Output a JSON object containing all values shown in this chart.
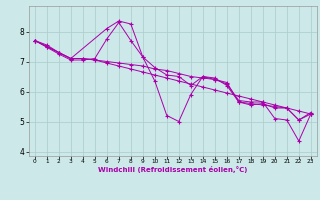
{
  "xlabel": "Windchill (Refroidissement éolien,°C)",
  "bg_color": "#cce8e8",
  "line_color": "#aa00aa",
  "grid_color": "#aacccc",
  "xlim": [
    -0.5,
    23.5
  ],
  "ylim": [
    3.85,
    8.85
  ],
  "yticks": [
    4,
    5,
    6,
    7,
    8
  ],
  "xticks": [
    0,
    1,
    2,
    3,
    4,
    5,
    6,
    7,
    8,
    9,
    10,
    11,
    12,
    13,
    14,
    15,
    16,
    17,
    18,
    19,
    20,
    21,
    22,
    23
  ],
  "series": [
    {
      "x": [
        0,
        1,
        2,
        3,
        4,
        5,
        6,
        7,
        8,
        9,
        10,
        11,
        12,
        13,
        14,
        15,
        16,
        17,
        18,
        19,
        20,
        21,
        22,
        23
      ],
      "y": [
        7.7,
        7.55,
        7.3,
        7.1,
        7.1,
        7.05,
        6.95,
        6.85,
        6.75,
        6.65,
        6.55,
        6.45,
        6.35,
        6.25,
        6.15,
        6.05,
        5.95,
        5.85,
        5.75,
        5.65,
        5.55,
        5.45,
        5.35,
        5.25
      ]
    },
    {
      "x": [
        0,
        1,
        2,
        3,
        4,
        5,
        6,
        7,
        8,
        9,
        10,
        11,
        12,
        13,
        14,
        15,
        16,
        17,
        18,
        19,
        20,
        21,
        22,
        23
      ],
      "y": [
        7.7,
        7.5,
        7.3,
        7.1,
        7.1,
        7.05,
        7.0,
        6.95,
        6.9,
        6.85,
        6.75,
        6.7,
        6.6,
        6.5,
        6.45,
        6.4,
        6.3,
        5.65,
        5.6,
        5.55,
        5.5,
        5.45,
        5.05,
        5.25
      ]
    },
    {
      "x": [
        0,
        2,
        3,
        4,
        5,
        6,
        7,
        8,
        9,
        10,
        11,
        12,
        13,
        14,
        15,
        16,
        17,
        18,
        19,
        20,
        21,
        22,
        23
      ],
      "y": [
        7.7,
        7.25,
        7.05,
        7.05,
        7.1,
        7.75,
        8.3,
        7.7,
        7.15,
        6.35,
        5.2,
        5.0,
        5.9,
        6.5,
        6.4,
        6.25,
        5.7,
        5.65,
        5.65,
        5.1,
        5.05,
        4.35,
        5.25
      ]
    },
    {
      "x": [
        0,
        1,
        2,
        3,
        6,
        7,
        8,
        9,
        10,
        11,
        12,
        13,
        14,
        15,
        16,
        17,
        18,
        19,
        20,
        21,
        22,
        23
      ],
      "y": [
        7.7,
        7.5,
        7.3,
        7.1,
        8.1,
        8.35,
        8.25,
        7.15,
        6.8,
        6.55,
        6.5,
        6.2,
        6.5,
        6.45,
        6.2,
        5.65,
        5.55,
        5.6,
        5.45,
        5.45,
        5.05,
        5.3
      ]
    }
  ]
}
